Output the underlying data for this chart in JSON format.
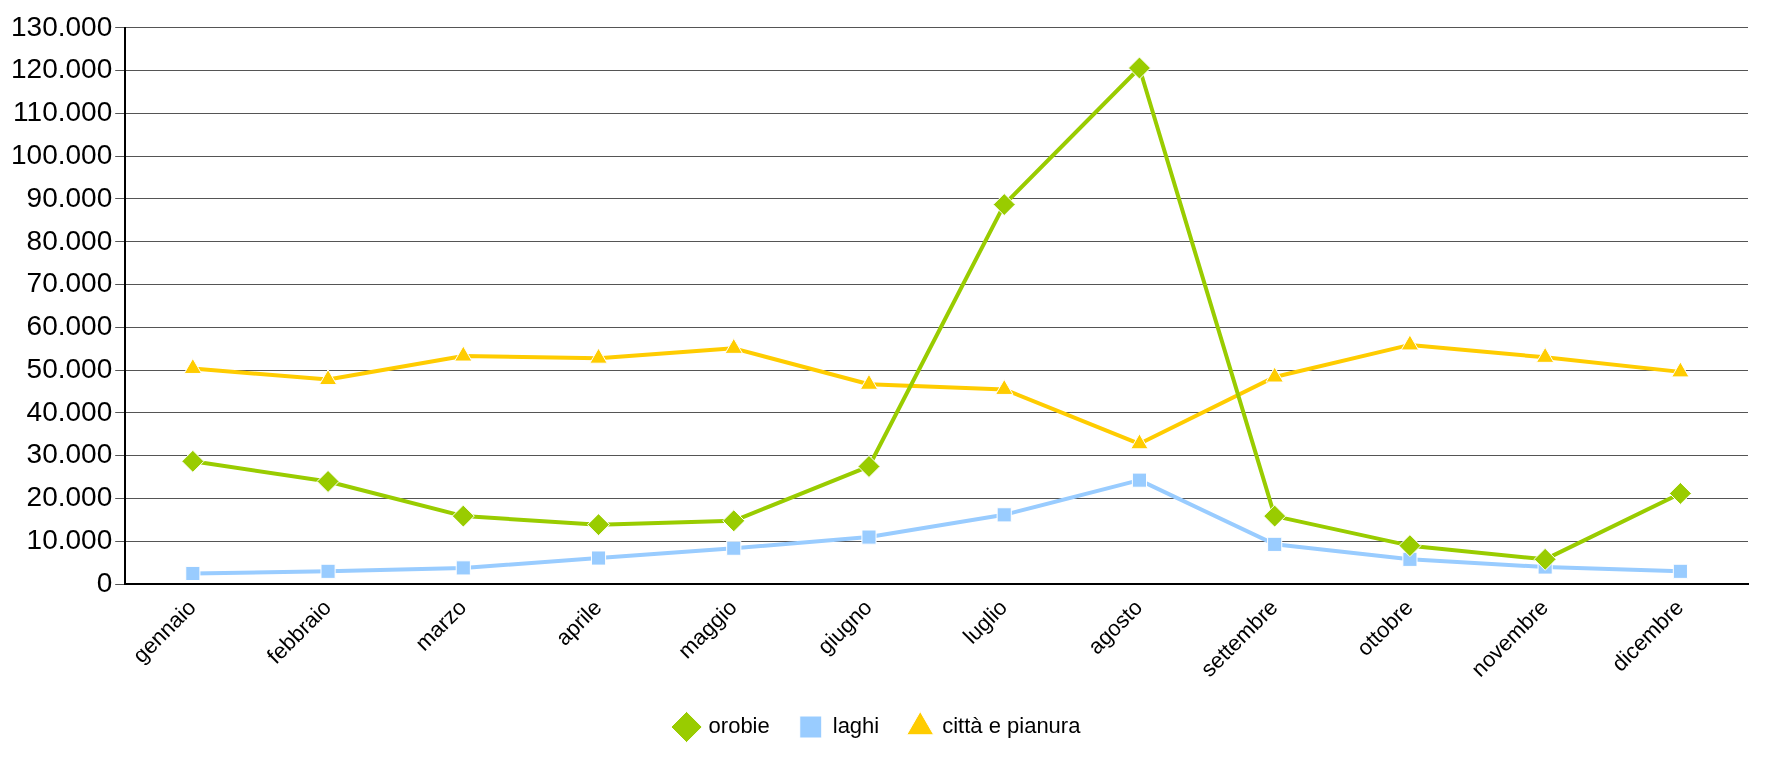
{
  "chart_data": {
    "type": "line",
    "categories": [
      "gennaio",
      "febbraio",
      "marzo",
      "aprile",
      "maggio",
      "giugno",
      "luglio",
      "agosto",
      "settembre",
      "ottobre",
      "novembre",
      "dicembre"
    ],
    "series": [
      {
        "name": "orobie",
        "color": "#99cc00",
        "marker": "diamond",
        "values": [
          28700,
          24000,
          15900,
          13900,
          14800,
          27500,
          88700,
          120600,
          15900,
          9000,
          5800,
          21200
        ]
      },
      {
        "name": "laghi",
        "color": "#99ccff",
        "marker": "square",
        "values": [
          2500,
          3000,
          3800,
          6100,
          8400,
          11000,
          16200,
          24300,
          9300,
          5800,
          4000,
          3000
        ]
      },
      {
        "name": "città e pianura",
        "color": "#ffcc00",
        "marker": "triangle",
        "values": [
          50400,
          47800,
          53300,
          52800,
          55100,
          46700,
          45500,
          32800,
          48400,
          55900,
          53000,
          49600
        ]
      }
    ],
    "ylim": [
      0,
      130000
    ],
    "yticks": [
      {
        "value": 0,
        "label": "0"
      },
      {
        "value": 10000,
        "label": "10.000"
      },
      {
        "value": 20000,
        "label": "20.000"
      },
      {
        "value": 30000,
        "label": "30.000"
      },
      {
        "value": 40000,
        "label": "40.000"
      },
      {
        "value": 50000,
        "label": "50.000"
      },
      {
        "value": 60000,
        "label": "60.000"
      },
      {
        "value": 70000,
        "label": "70.000"
      },
      {
        "value": 80000,
        "label": "80.000"
      },
      {
        "value": 90000,
        "label": "90.000"
      },
      {
        "value": 100000,
        "label": "100.000"
      },
      {
        "value": 110000,
        "label": "110.000"
      },
      {
        "value": 120000,
        "label": "120.000"
      },
      {
        "value": 130000,
        "label": "130.000"
      }
    ],
    "grid": "y",
    "legend": "bottom"
  }
}
